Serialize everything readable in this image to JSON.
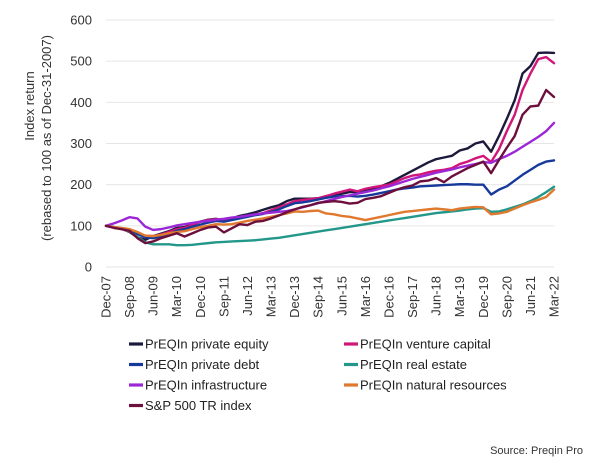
{
  "chart_data": {
    "type": "line",
    "title": "",
    "xlabel": "",
    "ylabel": "Index return",
    "ylabel_sub": "(rebased to 100 as of Dec-31-2007)",
    "ylim": [
      0,
      600
    ],
    "yticks": [
      0,
      100,
      200,
      300,
      400,
      500,
      600
    ],
    "grid": "horizontal",
    "legend_placement": "bottom",
    "x": [
      "Dec-07",
      "Mar-08",
      "Jun-08",
      "Sep-08",
      "Dec-08",
      "Mar-09",
      "Jun-09",
      "Sep-09",
      "Dec-09",
      "Mar-10",
      "Jun-10",
      "Sep-10",
      "Dec-10",
      "Mar-11",
      "Jun-11",
      "Sep-11",
      "Dec-11",
      "Mar-12",
      "Jun-12",
      "Sep-12",
      "Dec-12",
      "Mar-13",
      "Jun-13",
      "Sep-13",
      "Dec-13",
      "Mar-14",
      "Jun-14",
      "Sep-14",
      "Dec-14",
      "Mar-15",
      "Jun-15",
      "Sep-15",
      "Dec-15",
      "Mar-16",
      "Jun-16",
      "Sep-16",
      "Dec-16",
      "Mar-17",
      "Jun-17",
      "Sep-17",
      "Dec-17",
      "Mar-18",
      "Jun-18",
      "Sep-18",
      "Dec-18",
      "Mar-19",
      "Jun-19",
      "Sep-19",
      "Dec-19",
      "Mar-20",
      "Jun-20",
      "Sep-20",
      "Dec-20",
      "Mar-21",
      "Jun-21",
      "Sep-21",
      "Dec-21",
      "Mar-22"
    ],
    "xtick_labels": [
      "Dec-07",
      "Sep-08",
      "Jun-09",
      "Mar-10",
      "Dec-10",
      "Sep-11",
      "Jun-12",
      "Mar-13",
      "Dec-13",
      "Sep-14",
      "Jun-15",
      "Mar-16",
      "Dec-16",
      "Sep-17",
      "Jun-18",
      "Mar-19",
      "Dec-19",
      "Sep-20",
      "Jun-21",
      "Mar-22"
    ],
    "series": [
      {
        "name": "PrEQIn private equity",
        "color": "#1c1a3c",
        "values": [
          100,
          97,
          93,
          85,
          72,
          66,
          75,
          81,
          87,
          95,
          97,
          103,
          110,
          115,
          117,
          112,
          118,
          124,
          128,
          133,
          139,
          145,
          150,
          160,
          166,
          166,
          166,
          167,
          172,
          176,
          178,
          182,
          182,
          186,
          190,
          196,
          204,
          214,
          224,
          234,
          244,
          254,
          262,
          266,
          270,
          283,
          288,
          300,
          305,
          280,
          318,
          360,
          405,
          470,
          488,
          520,
          521,
          520
        ]
      },
      {
        "name": "PrEQIn venture capital",
        "color": "#d1167a",
        "values": [
          100,
          96,
          92,
          86,
          80,
          76,
          75,
          79,
          85,
          92,
          95,
          102,
          110,
          114,
          116,
          114,
          118,
          122,
          124,
          127,
          131,
          138,
          145,
          152,
          160,
          163,
          165,
          167,
          172,
          178,
          183,
          188,
          184,
          190,
          194,
          197,
          200,
          208,
          216,
          222,
          225,
          230,
          234,
          236,
          240,
          250,
          256,
          264,
          270,
          255,
          286,
          330,
          370,
          430,
          470,
          505,
          510,
          495
        ]
      },
      {
        "name": "PrEQIn private debt",
        "color": "#173a9a",
        "values": [
          100,
          97,
          94,
          88,
          80,
          72,
          70,
          74,
          80,
          88,
          92,
          98,
          103,
          108,
          112,
          110,
          114,
          118,
          122,
          126,
          129,
          134,
          140,
          148,
          155,
          157,
          160,
          164,
          168,
          171,
          172,
          173,
          171,
          173,
          176,
          180,
          184,
          188,
          191,
          193,
          196,
          197,
          198,
          199,
          200,
          201,
          201,
          200,
          200,
          176,
          188,
          196,
          210,
          224,
          236,
          248,
          256,
          259
        ]
      },
      {
        "name": "PrEQIn real estate",
        "color": "#23988a",
        "values": [
          100,
          97,
          93,
          87,
          73,
          60,
          55,
          55,
          55,
          53,
          53,
          54,
          56,
          58,
          60,
          61,
          62,
          63,
          64,
          65,
          67,
          69,
          71,
          74,
          77,
          80,
          83,
          86,
          89,
          92,
          95,
          98,
          101,
          104,
          107,
          110,
          113,
          116,
          119,
          122,
          125,
          128,
          131,
          133,
          135,
          137,
          140,
          142,
          143,
          134,
          135,
          140,
          146,
          152,
          160,
          170,
          182,
          195
        ]
      },
      {
        "name": "PrEQIn infrastructure",
        "color": "#9b27d6",
        "values": [
          100,
          106,
          113,
          121,
          118,
          98,
          90,
          92,
          96,
          101,
          104,
          107,
          110,
          112,
          115,
          117,
          120,
          122,
          125,
          128,
          130,
          132,
          134,
          136,
          140,
          145,
          150,
          155,
          160,
          165,
          170,
          174,
          178,
          182,
          186,
          191,
          196,
          202,
          208,
          214,
          219,
          224,
          229,
          233,
          237,
          242,
          246,
          250,
          255,
          253,
          262,
          270,
          280,
          292,
          304,
          316,
          330,
          350
        ]
      },
      {
        "name": "PrEQIn natural resources",
        "color": "#e0792e",
        "values": [
          100,
          97,
          95,
          92,
          85,
          76,
          75,
          78,
          82,
          85,
          87,
          92,
          97,
          100,
          104,
          103,
          104,
          108,
          112,
          115,
          118,
          122,
          126,
          130,
          135,
          134,
          136,
          137,
          130,
          128,
          124,
          122,
          118,
          114,
          118,
          122,
          126,
          130,
          134,
          136,
          138,
          140,
          142,
          140,
          138,
          142,
          144,
          146,
          145,
          128,
          130,
          134,
          142,
          150,
          157,
          163,
          170,
          188
        ]
      },
      {
        "name": "S&P 500 TR index",
        "color": "#6c0f3c",
        "values": [
          100,
          95,
          92,
          88,
          70,
          58,
          62,
          70,
          76,
          82,
          74,
          82,
          90,
          96,
          98,
          84,
          94,
          104,
          102,
          110,
          112,
          118,
          125,
          133,
          140,
          146,
          150,
          156,
          158,
          160,
          158,
          154,
          156,
          165,
          168,
          172,
          180,
          188,
          194,
          198,
          208,
          210,
          216,
          206,
          220,
          230,
          240,
          248,
          256,
          228,
          260,
          290,
          318,
          370,
          390,
          392,
          430,
          413
        ]
      }
    ],
    "legend_columns": [
      [
        "PrEQIn private equity",
        "PrEQIn private debt",
        "PrEQIn infrastructure",
        "S&P 500 TR index"
      ],
      [
        "PrEQIn venture capital",
        "PrEQIn real estate",
        "PrEQIn natural resources"
      ]
    ]
  },
  "source": "Source: Preqin Pro"
}
